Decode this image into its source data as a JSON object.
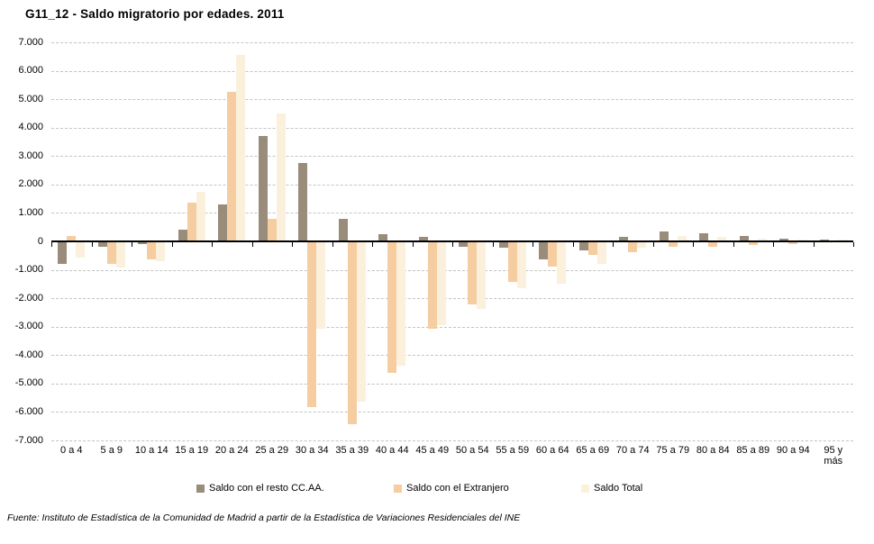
{
  "title": "G11_12 - Saldo migratorio por edades. 2011",
  "source_note": "Fuente: Instituto de Estadística de la Comunidad de Madrid a partir de la Estadística de Variaciones Residenciales del INE",
  "chart_data": {
    "type": "bar",
    "title": "G11_12 - Saldo migratorio por edades. 2011",
    "categories": [
      "0 a 4",
      "5 a 9",
      "10 a 14",
      "15 a 19",
      "20 a 24",
      "25 a 29",
      "30 a 34",
      "35 a 39",
      "40 a 44",
      "45 a 49",
      "50 a 54",
      "55 a 59",
      "60 a 64",
      "65 a 69",
      "70 a 74",
      "75 a 79",
      "80 a 84",
      "85 a 89",
      "90 a 94",
      "95 y más"
    ],
    "series": [
      {
        "name": "Saldo con el resto CC.AA.",
        "color": "#998c7a",
        "values": [
          -750,
          -150,
          -50,
          400,
          1300,
          3700,
          2750,
          800,
          250,
          150,
          -150,
          -200,
          -600,
          -300,
          150,
          350,
          300,
          200,
          100,
          50
        ]
      },
      {
        "name": "Saldo con el Extranjero",
        "color": "#f5cda1",
        "values": [
          200,
          -750,
          -600,
          1350,
          5250,
          800,
          -5800,
          -6400,
          -4600,
          -3050,
          -2200,
          -1400,
          -850,
          -450,
          -350,
          -150,
          -150,
          -100,
          -50,
          0
        ]
      },
      {
        "name": "Saldo Total",
        "color": "#faf0dc",
        "values": [
          -550,
          -900,
          -650,
          1750,
          6550,
          4500,
          -3050,
          -5600,
          -4350,
          -2900,
          -2350,
          -1600,
          -1450,
          -750,
          -200,
          200,
          150,
          100,
          50,
          50
        ]
      }
    ],
    "ylim": [
      -7000,
      7000
    ],
    "ytick_step": 1000,
    "ytick_labels": [
      "7.000",
      "6.000",
      "5.000",
      "4.000",
      "3.000",
      "2.000",
      "1.000",
      "0",
      "-1.000",
      "-2.000",
      "-3.000",
      "-4.000",
      "-5.000",
      "-6.000",
      "-7.000"
    ],
    "grid": "horizontal-dashed",
    "gridline_color": "#c4c4c4",
    "axis_color": "#000000",
    "legend_position": "bottom"
  }
}
